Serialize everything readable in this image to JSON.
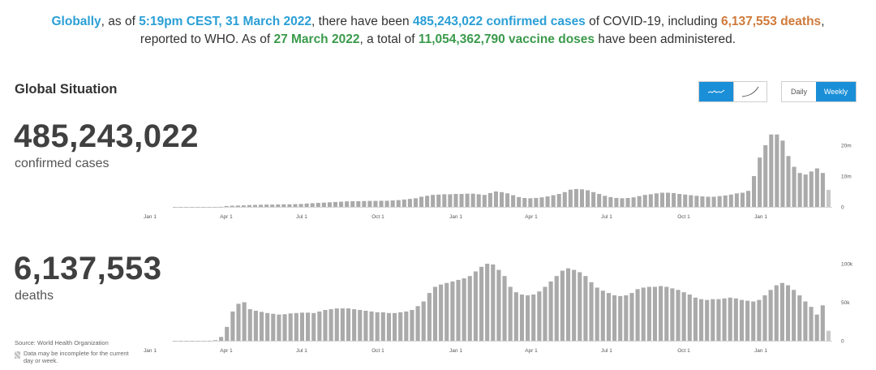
{
  "headline": {
    "line1": [
      {
        "text": "Globally",
        "style": "blue"
      },
      {
        "text": ", as of ",
        "style": "plain"
      },
      {
        "text": "5:19pm CEST, 31 March 2022",
        "style": "blue"
      },
      {
        "text": ", there have been ",
        "style": "plain"
      },
      {
        "text": "485,243,022 confirmed cases",
        "style": "blue"
      },
      {
        "text": " of COVID-19, including ",
        "style": "plain"
      },
      {
        "text": "6,137,553 deaths",
        "style": "orange"
      },
      {
        "text": ",",
        "style": "plain"
      }
    ],
    "line2": [
      {
        "text": "reported to WHO. As of ",
        "style": "plain"
      },
      {
        "text": "27 March 2022",
        "style": "green"
      },
      {
        "text": ", a total of ",
        "style": "plain"
      },
      {
        "text": "11,054,362,790 vaccine doses",
        "style": "green"
      },
      {
        "text": " have been administered.",
        "style": "plain"
      }
    ]
  },
  "section_title": "Global Situation",
  "controls": {
    "chart_style": {
      "options": [
        "wave-icon",
        "cumulative-curve-icon"
      ],
      "selected": "wave-icon"
    },
    "period": {
      "options": [
        "Daily",
        "Weekly"
      ],
      "selected": "Weekly"
    }
  },
  "colors": {
    "bar": "#aaaaaa",
    "incomplete_bar": "#c8c8c8",
    "active": "#1a8fd8"
  },
  "cases": {
    "value": "485,243,022",
    "label": "confirmed cases"
  },
  "deaths": {
    "value": "6,137,553",
    "label": "deaths"
  },
  "footnote": {
    "source": "Source: World Health Organization",
    "incomplete_note_line1": "Data may be incomplete for the current",
    "incomplete_note_line2": "day or week."
  },
  "chart_data": [
    {
      "type": "bar",
      "x_tick_labels": [
        "Jan 1",
        "Apr 1",
        "Jul 1",
        "Oct 1",
        "Jan 1",
        "Apr 1",
        "Jul 1",
        "Oct 1",
        "Jan 1"
      ],
      "y_tick_labels": [
        "0",
        "10m",
        "20m"
      ],
      "ylim": [
        0,
        25000000
      ],
      "last_bar_incomplete": true,
      "values": [
        0,
        0,
        0,
        0,
        0,
        0,
        0,
        0,
        50000,
        300000,
        400000,
        450000,
        500000,
        600000,
        650000,
        700000,
        750000,
        750000,
        800000,
        850000,
        850000,
        900000,
        950000,
        1100000,
        1200000,
        1300000,
        1400000,
        1500000,
        1600000,
        1700000,
        1800000,
        1850000,
        1850000,
        1900000,
        1950000,
        1950000,
        2000000,
        2000000,
        2100000,
        2200000,
        2400000,
        2600000,
        2800000,
        3300000,
        3600000,
        3900000,
        4000000,
        4100000,
        4100000,
        4200000,
        4200000,
        4300000,
        4300000,
        4100000,
        3900000,
        4500000,
        5000000,
        4800000,
        4400000,
        3800000,
        3200000,
        2900000,
        2800000,
        2900000,
        3100000,
        3400000,
        3800000,
        4200000,
        4800000,
        5600000,
        5800000,
        5700000,
        5400000,
        4800000,
        4200000,
        3600000,
        3200000,
        2900000,
        2800000,
        2900000,
        3100000,
        3500000,
        3900000,
        4100000,
        4400000,
        4600000,
        4600000,
        4500000,
        4200000,
        4000000,
        3800000,
        3600000,
        3400000,
        3300000,
        3300000,
        3500000,
        3700000,
        4000000,
        4400000,
        4600000,
        5200000,
        10000000,
        16000000,
        20000000,
        23500000,
        23500000,
        21500000,
        16500000,
        13000000,
        11000000,
        10500000,
        11500000,
        12500000,
        11000000,
        5500000
      ]
    },
    {
      "type": "bar",
      "x_tick_labels": [
        "Jan 1",
        "Apr 1",
        "Jul 1",
        "Oct 1",
        "Jan 1",
        "Apr 1",
        "Jul 1",
        "Oct 1",
        "Jan 1"
      ],
      "y_tick_labels": [
        "0",
        "50k",
        "100k"
      ],
      "ylim": [
        0,
        100000
      ],
      "last_bar_incomplete": true,
      "values": [
        0,
        0,
        0,
        0,
        0,
        0,
        100,
        800,
        5000,
        18000,
        38000,
        48000,
        50000,
        41000,
        39000,
        37500,
        36000,
        35000,
        34000,
        34500,
        35500,
        36000,
        36500,
        36500,
        36000,
        38000,
        40000,
        41000,
        42000,
        42000,
        42000,
        41000,
        40000,
        39000,
        38000,
        37000,
        37000,
        36000,
        36000,
        37000,
        38000,
        40000,
        45000,
        51000,
        62000,
        70000,
        73000,
        75000,
        77000,
        79000,
        81000,
        84000,
        90000,
        96000,
        100000,
        99000,
        92000,
        84000,
        70000,
        63000,
        60000,
        59000,
        60000,
        64000,
        70000,
        77000,
        84000,
        91000,
        94000,
        92000,
        89000,
        84000,
        76000,
        69000,
        65000,
        62000,
        59000,
        58000,
        59000,
        62000,
        67000,
        69000,
        70000,
        70000,
        71000,
        70000,
        68000,
        66000,
        63000,
        60000,
        56000,
        54000,
        53000,
        54000,
        54000,
        55000,
        56000,
        55000,
        53000,
        52000,
        51000,
        53000,
        59000,
        66000,
        72000,
        75000,
        72000,
        66000,
        59000,
        51000,
        44000,
        34000,
        46000,
        13000
      ]
    }
  ]
}
